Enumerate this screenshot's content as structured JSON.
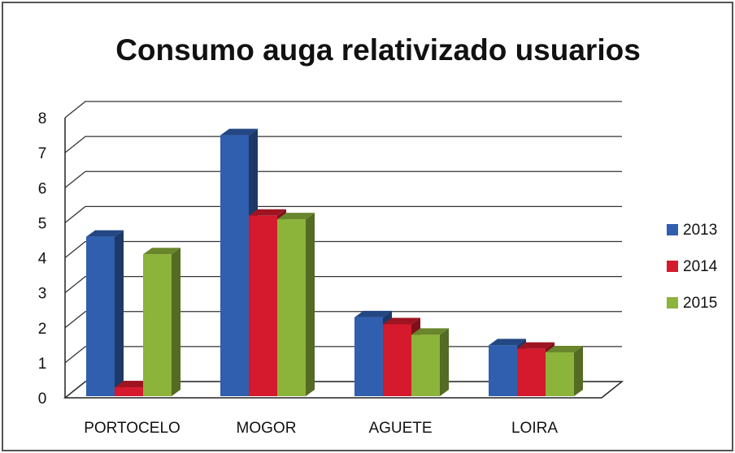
{
  "chart_data": {
    "type": "bar3d",
    "title": "Consumo auga relativizado usuarios",
    "categories": [
      "PORTOCELO",
      "MOGOR",
      "AGUETE",
      "LOIRA"
    ],
    "series": [
      {
        "name": "2013",
        "color": "#2f5fae",
        "values": [
          4.6,
          7.5,
          2.3,
          1.5
        ]
      },
      {
        "name": "2014",
        "color": "#d41a2c",
        "values": [
          0.3,
          5.2,
          2.1,
          1.4
        ]
      },
      {
        "name": "2015",
        "color": "#8cb33a",
        "values": [
          4.1,
          5.1,
          1.8,
          1.3
        ]
      }
    ],
    "ylim": [
      0,
      8
    ],
    "yticks": [
      0,
      1,
      2,
      3,
      4,
      5,
      6,
      7,
      8
    ],
    "grid": true,
    "legend": "right"
  }
}
